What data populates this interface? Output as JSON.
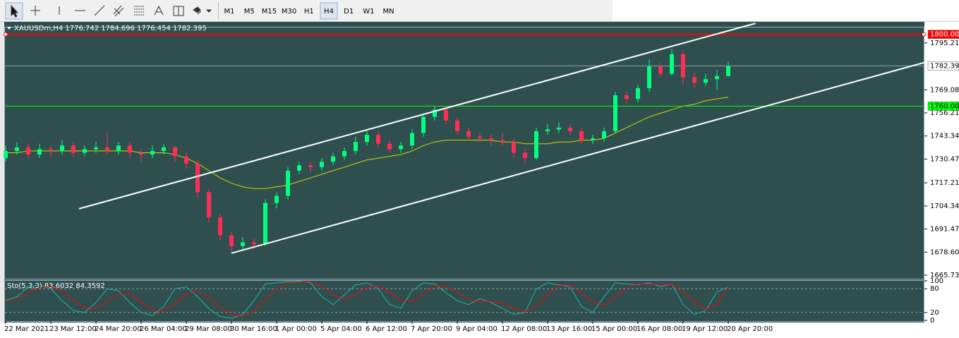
{
  "toolbar": {
    "timeframes": [
      "M1",
      "M5",
      "M15",
      "M30",
      "H1",
      "H4",
      "D1",
      "W1",
      "MN"
    ],
    "active": "H4"
  },
  "chart_data": {
    "type": "candlestick",
    "header": "XAUUSDm,H4  1776.742 1784.696 1776.454 1782.395",
    "categories": [
      "22 Mar 2021",
      null,
      null,
      null,
      "23 Mar 12:00",
      null,
      null,
      null,
      "24 Mar 20:00",
      null,
      null,
      null,
      "26 Mar 04:00",
      null,
      null,
      null,
      "29 Mar 08:00",
      null,
      null,
      null,
      "30 Mar 16:00",
      null,
      null,
      null,
      "1 Apr 00:00",
      null,
      null,
      null,
      "5 Apr 04:00",
      null,
      null,
      null,
      "6 Apr 12:00",
      null,
      null,
      null,
      "7 Apr 20:00",
      null,
      null,
      null,
      "9 Apr 04:00",
      null,
      null,
      null,
      "12 Apr 08:00",
      null,
      null,
      null,
      "13 Apr 16:00",
      null,
      null,
      null,
      "15 Apr 00:00",
      null,
      null,
      null,
      "16 Apr 08:00",
      null,
      null,
      null,
      "19 Apr 12:00",
      null,
      null,
      null,
      "20 Apr 20:00"
    ],
    "candles": [
      [
        1731,
        1738,
        1729,
        1735
      ],
      [
        1735,
        1740,
        1733,
        1737
      ],
      [
        1737,
        1739,
        1731,
        1733
      ],
      [
        1733,
        1739,
        1731,
        1736
      ],
      [
        1736,
        1738,
        1732,
        1735
      ],
      [
        1735,
        1741,
        1733,
        1738
      ],
      [
        1738,
        1740,
        1732,
        1734
      ],
      [
        1734,
        1738,
        1732,
        1736
      ],
      [
        1736,
        1740,
        1734,
        1737
      ],
      [
        1737,
        1745,
        1733,
        1735
      ],
      [
        1735,
        1740,
        1733,
        1738
      ],
      [
        1738,
        1740,
        1731,
        1734
      ],
      [
        1734,
        1736,
        1729,
        1733
      ],
      [
        1733,
        1738,
        1731,
        1735
      ],
      [
        1735,
        1739,
        1733,
        1737
      ],
      [
        1737,
        1738,
        1729,
        1732
      ],
      [
        1732,
        1734,
        1725,
        1728
      ],
      [
        1728,
        1730,
        1709,
        1712
      ],
      [
        1712,
        1714,
        1695,
        1698
      ],
      [
        1698,
        1700,
        1685,
        1688
      ],
      [
        1688,
        1690,
        1679,
        1682
      ],
      [
        1682,
        1687,
        1680,
        1684
      ],
      [
        1684,
        1686,
        1680,
        1683
      ],
      [
        1683,
        1708,
        1682,
        1706
      ],
      [
        1706,
        1712,
        1703,
        1710
      ],
      [
        1710,
        1726,
        1708,
        1724
      ],
      [
        1724,
        1729,
        1722,
        1727
      ],
      [
        1727,
        1729,
        1723,
        1726
      ],
      [
        1726,
        1731,
        1724,
        1729
      ],
      [
        1729,
        1734,
        1727,
        1732
      ],
      [
        1732,
        1737,
        1730,
        1735
      ],
      [
        1735,
        1743,
        1733,
        1740
      ],
      [
        1740,
        1747,
        1738,
        1744
      ],
      [
        1744,
        1746,
        1737,
        1739
      ],
      [
        1739,
        1741,
        1734,
        1736
      ],
      [
        1736,
        1740,
        1734,
        1738
      ],
      [
        1738,
        1747,
        1736,
        1745
      ],
      [
        1745,
        1756,
        1743,
        1754
      ],
      [
        1754,
        1760,
        1752,
        1758
      ],
      [
        1758,
        1759,
        1750,
        1752
      ],
      [
        1752,
        1754,
        1744,
        1746
      ],
      [
        1746,
        1748,
        1741,
        1743
      ],
      [
        1743,
        1745,
        1740,
        1742
      ],
      [
        1742,
        1744,
        1738,
        1741
      ],
      [
        1741,
        1745,
        1738,
        1740
      ],
      [
        1740,
        1742,
        1731,
        1734
      ],
      [
        1734,
        1736,
        1728,
        1731
      ],
      [
        1731,
        1748,
        1730,
        1746
      ],
      [
        1746,
        1750,
        1744,
        1747
      ],
      [
        1747,
        1751,
        1745,
        1748
      ],
      [
        1748,
        1750,
        1744,
        1746
      ],
      [
        1746,
        1748,
        1739,
        1741
      ],
      [
        1741,
        1744,
        1739,
        1742
      ],
      [
        1742,
        1748,
        1740,
        1746
      ],
      [
        1746,
        1768,
        1745,
        1766
      ],
      [
        1766,
        1768,
        1761,
        1764
      ],
      [
        1764,
        1772,
        1762,
        1770
      ],
      [
        1770,
        1786,
        1768,
        1782
      ],
      [
        1782,
        1784,
        1776,
        1778
      ],
      [
        1778,
        1792,
        1777,
        1789
      ],
      [
        1789,
        1791,
        1772,
        1776
      ],
      [
        1776,
        1779,
        1770,
        1773
      ],
      [
        1773,
        1778,
        1771,
        1775
      ],
      [
        1775,
        1780,
        1769,
        1776.742
      ],
      [
        1776.742,
        1784.696,
        1776.454,
        1782.395
      ]
    ],
    "up_color": "#00ff7f",
    "down_color": "#ff2d55",
    "xlim": [
      -0.5,
      81.375
    ],
    "ylim": [
      1663.78,
      1803.4
    ],
    "yticks": [
      {
        "value": 1795.21,
        "label": "1795.210"
      },
      {
        "value": 1769.08,
        "label": "1769.080"
      },
      {
        "value": 1756.21,
        "label": "1756.210"
      },
      {
        "value": 1743.34,
        "label": "1743.340"
      },
      {
        "value": 1730.47,
        "label": "1730.470"
      },
      {
        "value": 1717.21,
        "label": "1717.210"
      },
      {
        "value": 1704.34,
        "label": "1704.340"
      },
      {
        "value": 1691.47,
        "label": "1691.470"
      },
      {
        "value": 1678.6,
        "label": "1678.600"
      },
      {
        "value": 1665.73,
        "label": "1665.730"
      }
    ],
    "ma": {
      "color": "#d4d400",
      "values": [
        1734,
        1734,
        1735,
        1735,
        1735,
        1735,
        1735,
        1735,
        1735,
        1735,
        1735,
        1735,
        1734,
        1734,
        1734,
        1733,
        1731,
        1728,
        1724,
        1720,
        1717,
        1715,
        1714,
        1714,
        1715,
        1716,
        1718,
        1720,
        1722,
        1724,
        1726,
        1728,
        1730,
        1731,
        1732,
        1733,
        1735,
        1738,
        1740,
        1741,
        1741,
        1741,
        1741,
        1741,
        1740,
        1740,
        1739,
        1739,
        1739,
        1740,
        1740,
        1741,
        1741,
        1742,
        1745,
        1748,
        1751,
        1754,
        1756,
        1758,
        1760,
        1761,
        1763,
        1764,
        1765
      ]
    },
    "hlines": [
      {
        "value": 1800,
        "label": "1800.000",
        "color": "#ff0000",
        "label_color": "#ff0000",
        "anchors": true
      },
      {
        "value": 1760,
        "label": "1760.000",
        "color": "#00ff00",
        "label_color": "#00ff00",
        "anchors": false
      },
      {
        "value": 1782.395,
        "label": "1782.395",
        "color": "#8fa3a3",
        "label_color": "#ffffff",
        "anchors": false
      }
    ],
    "channel": [
      {
        "color": "#ffffff",
        "x": [
          6.5,
          66.4
        ],
        "y": [
          1702.8,
          1806.1
        ]
      },
      {
        "color": "#ffffff",
        "x": [
          20,
          81.375
        ],
        "y": [
          1678,
          1784.3
        ]
      }
    ],
    "stochastic": {
      "title": "Sto(5,3,3) 83.6032 84.3592",
      "ylim": [
        0,
        100
      ],
      "yticks": [
        100,
        80,
        20,
        0
      ],
      "levels": [
        80,
        20
      ],
      "main": {
        "color": "#20b2aa",
        "values": [
          50,
          60,
          85,
          90,
          80,
          50,
          25,
          20,
          45,
          80,
          75,
          45,
          20,
          12,
          35,
          80,
          85,
          60,
          30,
          10,
          5,
          15,
          50,
          92,
          95,
          98,
          99,
          95,
          60,
          40,
          65,
          90,
          95,
          80,
          40,
          30,
          75,
          95,
          92,
          70,
          50,
          40,
          55,
          45,
          30,
          15,
          20,
          80,
          95,
          90,
          85,
          35,
          20,
          60,
          95,
          92,
          90,
          95,
          85,
          92,
          40,
          15,
          25,
          72,
          83.6032
        ]
      },
      "signal": {
        "color": "#ff0000",
        "values": [
          45,
          55,
          70,
          82,
          85,
          73,
          52,
          32,
          30,
          48,
          67,
          67,
          47,
          26,
          22,
          42,
          67,
          75,
          58,
          33,
          15,
          10,
          23,
          52,
          79,
          95,
          97,
          97,
          85,
          65,
          55,
          65,
          83,
          88,
          72,
          50,
          48,
          67,
          87,
          86,
          71,
          53,
          48,
          47,
          43,
          30,
          22,
          38,
          65,
          88,
          90,
          70,
          47,
          38,
          58,
          82,
          92,
          92,
          90,
          91,
          72,
          49,
          27,
          40,
          84.3592
        ]
      }
    }
  }
}
